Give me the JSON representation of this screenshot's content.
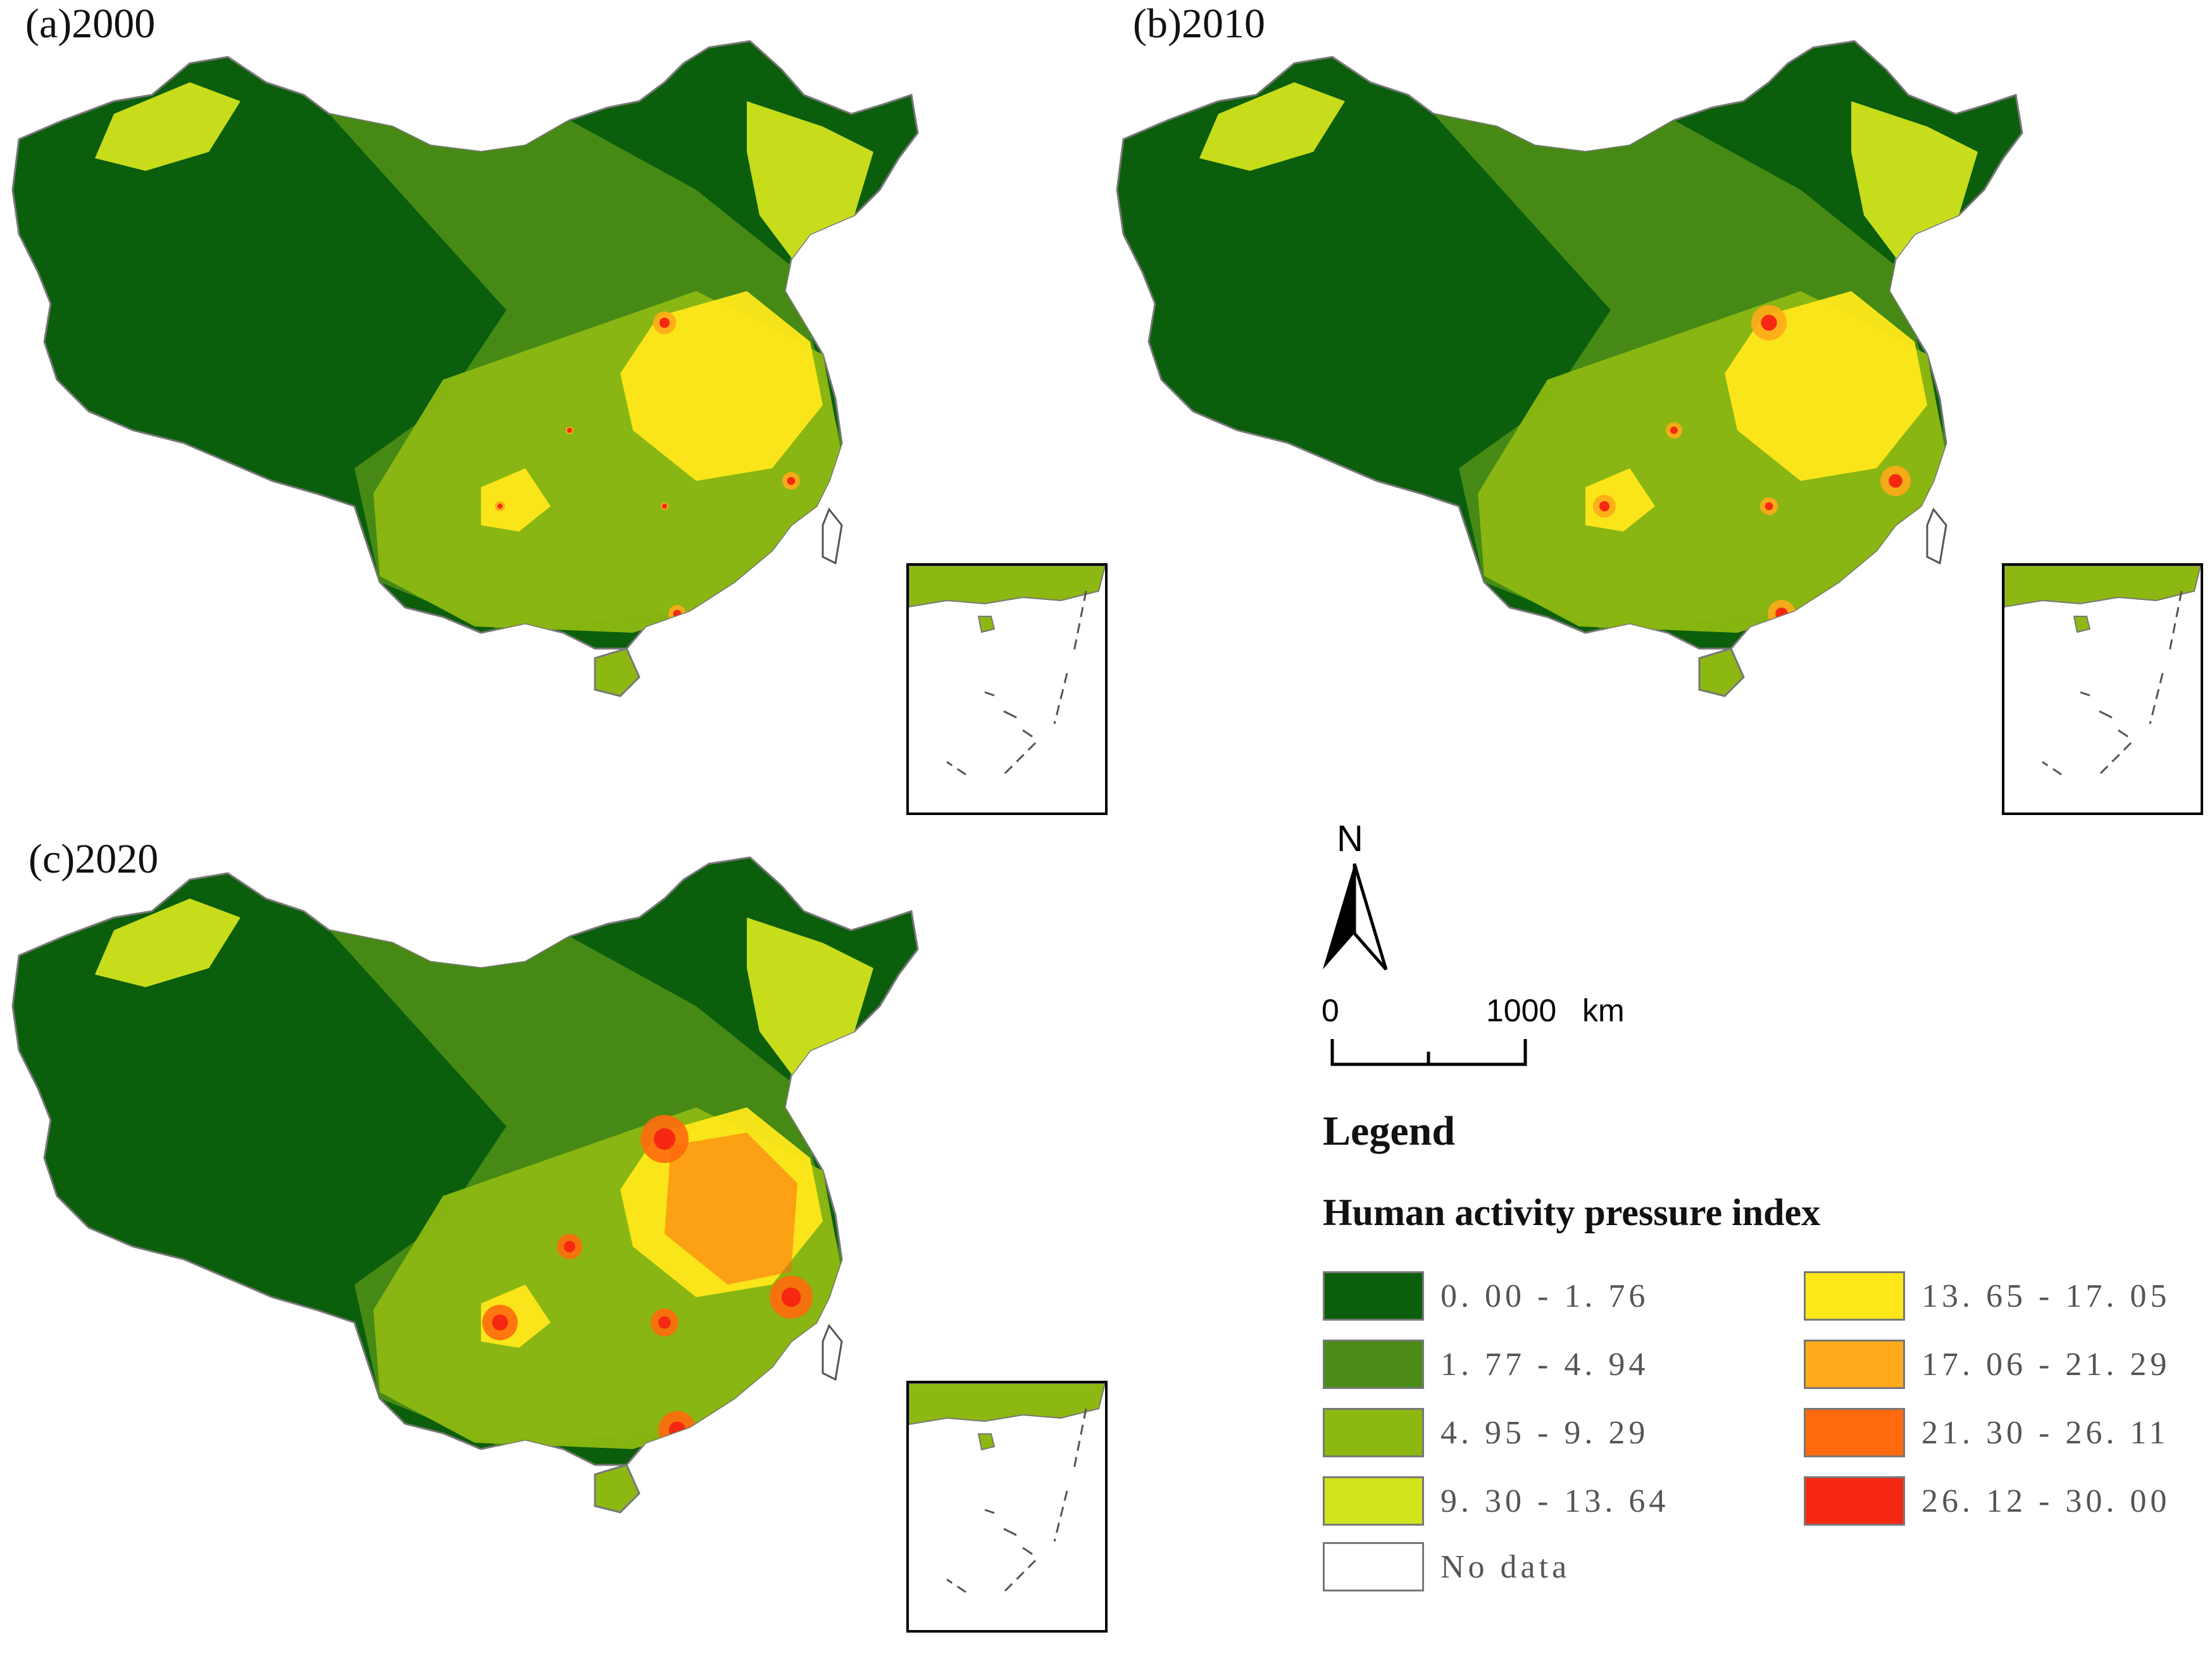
{
  "panels": [
    {
      "label": "(a)2000",
      "year": 2000
    },
    {
      "label": "(b)2010",
      "year": 2010
    },
    {
      "label": "(c)2020",
      "year": 2020
    }
  ],
  "north_arrow": {
    "label": "N"
  },
  "scale_bar": {
    "zero": "0",
    "max": "1000",
    "unit": "km"
  },
  "legend": {
    "title": "Legend",
    "subtitle": "Human activity pressure index",
    "classes": [
      {
        "range": "0. 00 - 1. 76",
        "color": "#0b5e0b"
      },
      {
        "range": "1. 77 - 4. 94",
        "color": "#4a8c16"
      },
      {
        "range": "4. 95 - 9. 29",
        "color": "#8db812"
      },
      {
        "range": "9. 30 - 13. 64",
        "color": "#d2e41c"
      },
      {
        "range": "13. 65 - 17. 05",
        "color": "#ffe81a"
      },
      {
        "range": "17. 06 - 21. 29",
        "color": "#ffaa1a"
      },
      {
        "range": "21. 30 - 26. 11",
        "color": "#ff6a0e"
      },
      {
        "range": "26. 12 - 30. 00",
        "color": "#f72812"
      },
      {
        "range": "No data",
        "color": "#ffffff"
      }
    ]
  }
}
